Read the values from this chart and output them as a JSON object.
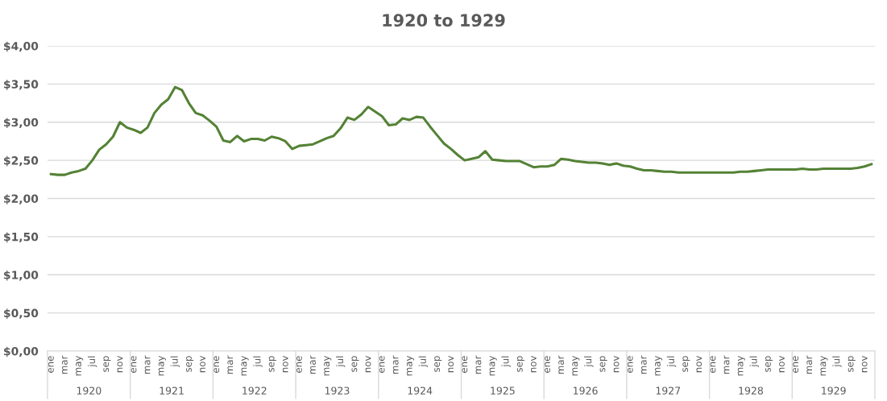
{
  "chart_data": {
    "type": "line",
    "title": "1920 to 1929",
    "categories": [
      "ene",
      null,
      "mar",
      null,
      "may",
      null,
      "jul",
      null,
      "sep",
      null,
      "nov",
      null,
      "ene",
      null,
      "mar",
      null,
      "may",
      null,
      "jul",
      null,
      "sep",
      null,
      "nov",
      null,
      "ene",
      null,
      "mar",
      null,
      "may",
      null,
      "jul",
      null,
      "sep",
      null,
      "nov",
      null,
      "ene",
      null,
      "mar",
      null,
      "may",
      null,
      "jul",
      null,
      "sep",
      null,
      "nov",
      null,
      "ene",
      null,
      "mar",
      null,
      "may",
      null,
      "jul",
      null,
      "sep",
      null,
      "nov",
      null,
      "ene",
      null,
      "mar",
      null,
      "may",
      null,
      "jul",
      null,
      "sep",
      null,
      "nov",
      null,
      "ene",
      null,
      "mar",
      null,
      "may",
      null,
      "jul",
      null,
      "sep",
      null,
      "nov",
      null,
      "ene",
      null,
      "mar",
      null,
      "may",
      null,
      "jul",
      null,
      "sep",
      null,
      "nov",
      null,
      "ene",
      null,
      "mar",
      null,
      "may",
      null,
      "jul",
      null,
      "sep",
      null,
      "nov",
      null,
      "ene",
      null,
      "mar",
      null,
      "may",
      null,
      "jul",
      null,
      "sep",
      null,
      "nov",
      null
    ],
    "series": [
      {
        "color": "#548235",
        "values": [
          2.32,
          2.31,
          2.31,
          2.34,
          2.36,
          2.39,
          2.5,
          2.64,
          2.71,
          2.81,
          3.0,
          2.93,
          2.9,
          2.86,
          2.93,
          3.12,
          3.23,
          3.3,
          3.46,
          3.42,
          3.25,
          3.12,
          3.09,
          3.02,
          2.94,
          2.76,
          2.74,
          2.82,
          2.75,
          2.78,
          2.78,
          2.76,
          2.81,
          2.79,
          2.75,
          2.65,
          2.69,
          2.7,
          2.71,
          2.75,
          2.79,
          2.82,
          2.92,
          3.06,
          3.03,
          3.1,
          3.2,
          3.14,
          3.08,
          2.96,
          2.97,
          3.05,
          3.03,
          3.07,
          3.06,
          2.94,
          2.83,
          2.72,
          2.65,
          2.57,
          2.5,
          2.52,
          2.54,
          2.62,
          2.51,
          2.5,
          2.49,
          2.49,
          2.49,
          2.45,
          2.41,
          2.42,
          2.42,
          2.44,
          2.52,
          2.51,
          2.49,
          2.48,
          2.47,
          2.47,
          2.46,
          2.44,
          2.46,
          2.43,
          2.42,
          2.39,
          2.37,
          2.37,
          2.36,
          2.35,
          2.35,
          2.34,
          2.34,
          2.34,
          2.34,
          2.34,
          2.34,
          2.34,
          2.34,
          2.34,
          2.35,
          2.35,
          2.36,
          2.37,
          2.38,
          2.38,
          2.38,
          2.38,
          2.38,
          2.39,
          2.38,
          2.38,
          2.39,
          2.39,
          2.39,
          2.39,
          2.39,
          2.4,
          2.42,
          2.45
        ]
      }
    ],
    "ylim": [
      0,
      4
    ],
    "yticks": [
      {
        "value": 0,
        "label": "$0,00"
      },
      {
        "value": 0.5,
        "label": "$0,50"
      },
      {
        "value": 1,
        "label": "$1,00"
      },
      {
        "value": 1.5,
        "label": "$1,50"
      },
      {
        "value": 2,
        "label": "$2,00"
      },
      {
        "value": 2.5,
        "label": "$2,50"
      },
      {
        "value": 3,
        "label": "$3,00"
      },
      {
        "value": 3.5,
        "label": "$3,50"
      },
      {
        "value": 4,
        "label": "$4,00"
      }
    ],
    "grid": "y",
    "annotations": [
      "1920",
      "1921",
      "1922",
      "1923",
      "1924",
      "1925",
      "1926",
      "1927",
      "1928",
      "1929"
    ]
  }
}
